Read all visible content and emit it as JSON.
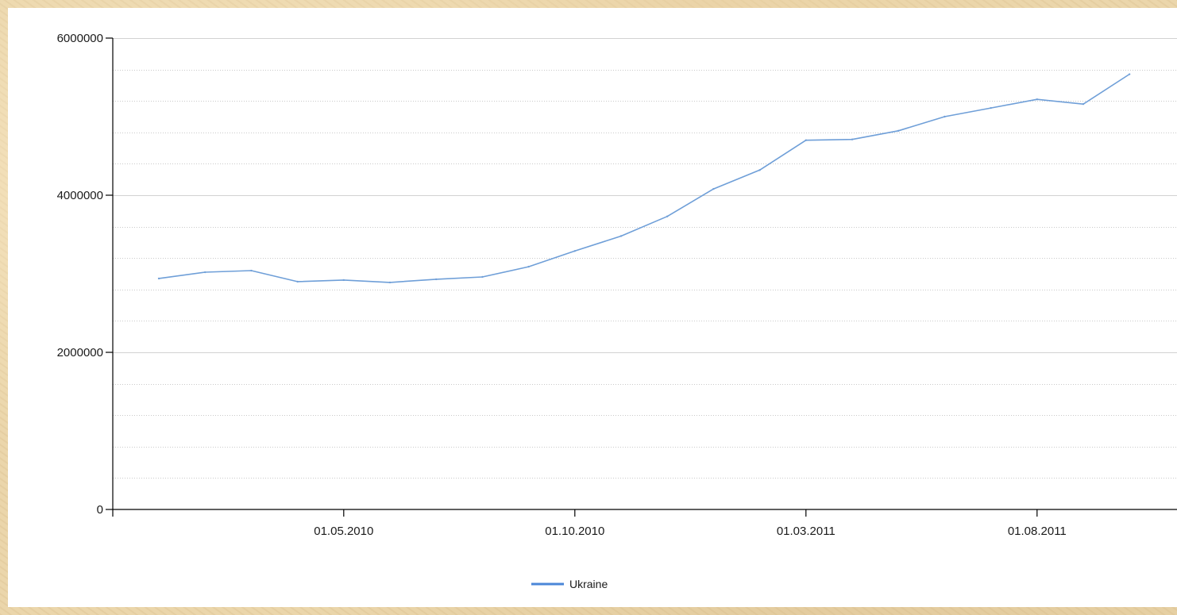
{
  "chart_data": {
    "type": "line",
    "title": "",
    "xlabel": "",
    "ylabel": "",
    "ylim": [
      0,
      6000000
    ],
    "yticks": [
      "0",
      "2000000",
      "4000000",
      "6000000"
    ],
    "xticks": [
      "01.05.2010",
      "01.10.2010",
      "01.03.2011",
      "01.08.2011"
    ],
    "grid": "horizontal",
    "legend_position": "bottom-center",
    "series": [
      {
        "name": "Ukraine",
        "color": "#6f9fd8",
        "x": [
          "2010-01",
          "2010-02",
          "2010-03",
          "2010-04",
          "2010-05",
          "2010-06",
          "2010-07",
          "2010-08",
          "2010-09",
          "2010-10",
          "2010-11",
          "2010-12",
          "2011-01",
          "2011-02",
          "2011-03",
          "2011-04",
          "2011-05",
          "2011-06",
          "2011-07",
          "2011-08",
          "2011-09",
          "2011-10"
        ],
        "values": [
          2940000,
          3020000,
          3040000,
          2900000,
          2920000,
          2890000,
          2930000,
          2960000,
          3090000,
          3290000,
          3480000,
          3730000,
          4080000,
          4320000,
          4700000,
          4710000,
          4820000,
          5000000,
          5110000,
          5220000,
          5160000,
          5540000
        ]
      }
    ]
  },
  "legend": {
    "label": "Ukraine"
  }
}
